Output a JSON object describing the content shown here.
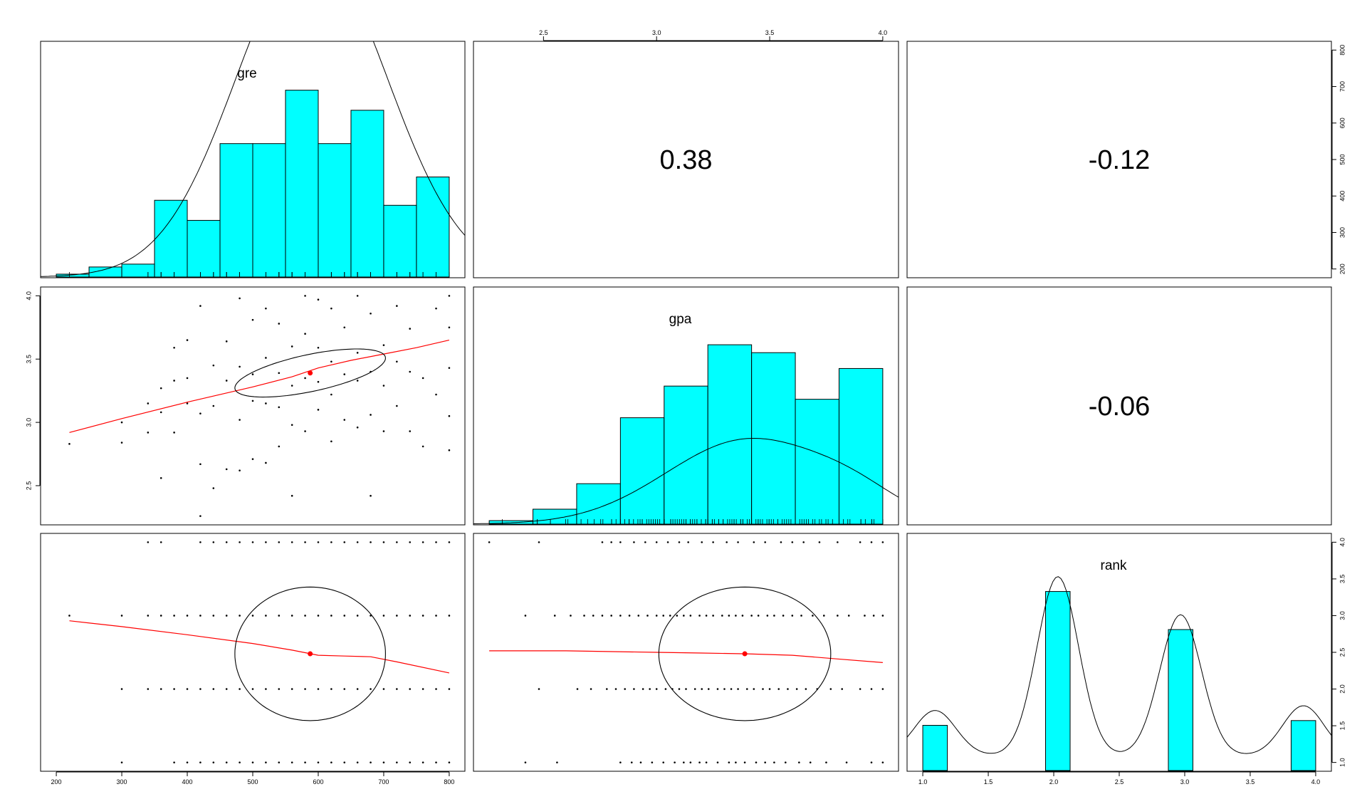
{
  "chart_data": {
    "type": "pairs_panel",
    "variables": [
      "gre",
      "gpa",
      "rank"
    ],
    "colors": {
      "hist_fill": "#00ffff",
      "smooth": "#ff0000",
      "points": "#000000",
      "ellipse": "#000000",
      "density": "#000000"
    },
    "axes": {
      "gre": {
        "range": [
          200,
          800
        ],
        "ticks": [
          "200",
          "300",
          "400",
          "500",
          "600",
          "700",
          "800"
        ]
      },
      "gpa": {
        "range": [
          2.26,
          4.0
        ],
        "ticks": [
          "2.5",
          "3.0",
          "3.5",
          "4.0"
        ]
      },
      "rank": {
        "range": [
          1,
          4
        ],
        "ticks": [
          "1.0",
          "1.5",
          "2.0",
          "2.5",
          "3.0",
          "3.5",
          "4.0"
        ]
      }
    },
    "correlations": [
      {
        "pair": [
          "gre",
          "gpa"
        ],
        "label": "0.38"
      },
      {
        "pair": [
          "gre",
          "rank"
        ],
        "label": "-0.12"
      },
      {
        "pair": [
          "gpa",
          "rank"
        ],
        "label": "-0.06"
      }
    ],
    "histograms": {
      "gre": {
        "breaks": [
          200,
          250,
          300,
          350,
          400,
          450,
          500,
          550,
          600,
          650,
          700,
          750,
          800
        ],
        "density": [
          8e-05,
          0.00028,
          0.00036,
          0.00214,
          0.00158,
          0.00372,
          0.00372,
          0.00521,
          0.00372,
          0.00465,
          0.002,
          0.00279
        ],
        "ymax": 0.0056
      },
      "gpa": {
        "breaks": [
          2.2,
          2.4,
          2.6,
          2.8,
          3.0,
          3.2,
          3.4,
          3.6,
          3.8,
          4.0
        ],
        "density": [
          0.04,
          0.17,
          0.46,
          1.21,
          1.57,
          2.04,
          1.95,
          1.42,
          1.77
        ],
        "ymax": 2.3
      },
      "rank": {
        "breaks": [
          0.9,
          1.1,
          1.9,
          2.1,
          2.9,
          3.1,
          3.9,
          4.1
        ],
        "density": [
          0.76,
          0,
          3.01,
          0,
          2.37,
          0,
          0.84
        ],
        "ymax": 3.4
      }
    },
    "smooth_lines": {
      "gpa_vs_gre": {
        "x": [
          220,
          300,
          400,
          500,
          560,
          600,
          650,
          700,
          750,
          800
        ],
        "y": [
          2.92,
          3.03,
          3.16,
          3.28,
          3.36,
          3.43,
          3.49,
          3.54,
          3.59,
          3.65
        ]
      },
      "rank_vs_gre": {
        "x": [
          220,
          300,
          400,
          500,
          560,
          600,
          640,
          680,
          720,
          800
        ],
        "y": [
          2.93,
          2.85,
          2.74,
          2.62,
          2.53,
          2.46,
          2.45,
          2.44,
          2.37,
          2.22
        ]
      },
      "rank_vs_gpa": {
        "x": [
          2.26,
          2.6,
          3.0,
          3.2,
          3.4,
          3.6,
          3.8,
          4.0
        ],
        "y": [
          2.52,
          2.52,
          2.5,
          2.49,
          2.48,
          2.46,
          2.41,
          2.36
        ]
      }
    },
    "means": {
      "gre": 587.7,
      "gpa": 3.39,
      "rank": 2.48
    },
    "ellipses": {
      "gpa_vs_gre": {
        "cx": 587.7,
        "cy": 3.39,
        "rx": 115,
        "ry": 0.19,
        "tilt": 0.62
      },
      "rank_vs_gre": {
        "cx": 587.7,
        "cy": 2.48,
        "rx": 115,
        "ry": 0.91
      },
      "rank_vs_gpa": {
        "cx": 3.39,
        "cy": 2.48,
        "rx": 0.38,
        "ry": 0.91
      }
    },
    "points_gpa_vs_gre": [
      [
        220,
        2.83
      ],
      [
        300,
        2.84
      ],
      [
        300,
        3.0
      ],
      [
        340,
        2.92
      ],
      [
        340,
        3.15
      ],
      [
        360,
        2.56
      ],
      [
        360,
        3.08
      ],
      [
        360,
        3.27
      ],
      [
        380,
        2.92
      ],
      [
        380,
        3.33
      ],
      [
        380,
        3.59
      ],
      [
        400,
        3.15
      ],
      [
        400,
        3.35
      ],
      [
        400,
        3.65
      ],
      [
        420,
        2.26
      ],
      [
        420,
        2.67
      ],
      [
        420,
        3.07
      ],
      [
        420,
        3.92
      ],
      [
        440,
        2.48
      ],
      [
        440,
        3.13
      ],
      [
        440,
        3.45
      ],
      [
        460,
        2.63
      ],
      [
        460,
        3.33
      ],
      [
        460,
        3.64
      ],
      [
        480,
        2.62
      ],
      [
        480,
        3.02
      ],
      [
        480,
        3.44
      ],
      [
        480,
        3.98
      ],
      [
        500,
        2.71
      ],
      [
        500,
        3.17
      ],
      [
        500,
        3.38
      ],
      [
        500,
        3.81
      ],
      [
        520,
        2.68
      ],
      [
        520,
        3.15
      ],
      [
        520,
        3.51
      ],
      [
        520,
        3.9
      ],
      [
        540,
        2.81
      ],
      [
        540,
        3.12
      ],
      [
        540,
        3.39
      ],
      [
        540,
        3.78
      ],
      [
        560,
        2.42
      ],
      [
        560,
        2.98
      ],
      [
        560,
        3.29
      ],
      [
        560,
        3.6
      ],
      [
        580,
        2.93
      ],
      [
        580,
        3.35
      ],
      [
        580,
        3.7
      ],
      [
        580,
        4.0
      ],
      [
        600,
        3.1
      ],
      [
        600,
        3.32
      ],
      [
        600,
        3.59
      ],
      [
        600,
        3.97
      ],
      [
        620,
        2.85
      ],
      [
        620,
        3.22
      ],
      [
        620,
        3.48
      ],
      [
        620,
        3.9
      ],
      [
        640,
        3.02
      ],
      [
        640,
        3.38
      ],
      [
        640,
        3.75
      ],
      [
        660,
        2.96
      ],
      [
        660,
        3.33
      ],
      [
        660,
        3.55
      ],
      [
        660,
        4.0
      ],
      [
        680,
        2.42
      ],
      [
        680,
        3.06
      ],
      [
        680,
        3.4
      ],
      [
        680,
        3.86
      ],
      [
        700,
        2.93
      ],
      [
        700,
        3.29
      ],
      [
        700,
        3.61
      ],
      [
        720,
        3.13
      ],
      [
        720,
        3.48
      ],
      [
        720,
        3.92
      ],
      [
        740,
        2.93
      ],
      [
        740,
        3.4
      ],
      [
        740,
        3.74
      ],
      [
        760,
        2.81
      ],
      [
        760,
        3.35
      ],
      [
        780,
        3.22
      ],
      [
        780,
        3.9
      ],
      [
        800,
        2.78
      ],
      [
        800,
        3.05
      ],
      [
        800,
        3.43
      ],
      [
        800,
        3.75
      ],
      [
        800,
        4.0
      ]
    ],
    "points_rank_vs_gre": {
      "1": [
        300,
        380,
        400,
        420,
        440,
        460,
        480,
        500,
        520,
        540,
        560,
        580,
        600,
        620,
        640,
        660,
        680,
        700,
        720,
        740,
        760,
        780,
        800
      ],
      "2": [
        300,
        340,
        360,
        380,
        400,
        420,
        440,
        460,
        480,
        500,
        520,
        540,
        560,
        580,
        600,
        620,
        640,
        660,
        680,
        700,
        720,
        740,
        760,
        780,
        800
      ],
      "3": [
        220,
        300,
        340,
        360,
        380,
        400,
        420,
        440,
        460,
        480,
        500,
        520,
        540,
        560,
        580,
        600,
        620,
        640,
        660,
        680,
        700,
        720,
        740,
        760,
        780,
        800
      ],
      "4": [
        340,
        360,
        420,
        440,
        460,
        480,
        500,
        520,
        540,
        560,
        580,
        600,
        620,
        640,
        660,
        680,
        700,
        720,
        740,
        760,
        780,
        800
      ]
    },
    "points_rank_vs_gpa": {
      "1": [
        2.42,
        2.56,
        2.84,
        2.89,
        2.93,
        2.98,
        3.03,
        3.08,
        3.12,
        3.15,
        3.19,
        3.22,
        3.27,
        3.32,
        3.35,
        3.39,
        3.44,
        3.48,
        3.52,
        3.57,
        3.63,
        3.68,
        3.75,
        3.84,
        3.95,
        4.0
      ],
      "2": [
        2.48,
        2.65,
        2.71,
        2.78,
        2.82,
        2.86,
        2.9,
        2.94,
        2.97,
        3.0,
        3.04,
        3.07,
        3.1,
        3.13,
        3.17,
        3.2,
        3.23,
        3.27,
        3.3,
        3.33,
        3.36,
        3.4,
        3.43,
        3.47,
        3.5,
        3.54,
        3.58,
        3.62,
        3.66,
        3.71,
        3.77,
        3.82,
        3.9,
        3.95,
        4.0
      ],
      "3": [
        2.42,
        2.55,
        2.62,
        2.68,
        2.72,
        2.76,
        2.8,
        2.84,
        2.88,
        2.92,
        2.96,
        3.0,
        3.03,
        3.06,
        3.09,
        3.12,
        3.15,
        3.19,
        3.22,
        3.25,
        3.29,
        3.32,
        3.35,
        3.38,
        3.42,
        3.45,
        3.49,
        3.52,
        3.56,
        3.6,
        3.64,
        3.69,
        3.74,
        3.8,
        3.85,
        3.92,
        3.96,
        4.0
      ],
      "4": [
        2.26,
        2.48,
        2.76,
        2.8,
        2.84,
        2.9,
        2.95,
        3.0,
        3.05,
        3.1,
        3.14,
        3.2,
        3.25,
        3.31,
        3.36,
        3.43,
        3.48,
        3.55,
        3.6,
        3.65,
        3.72,
        3.8,
        3.9,
        3.95,
        4.0
      ]
    }
  }
}
